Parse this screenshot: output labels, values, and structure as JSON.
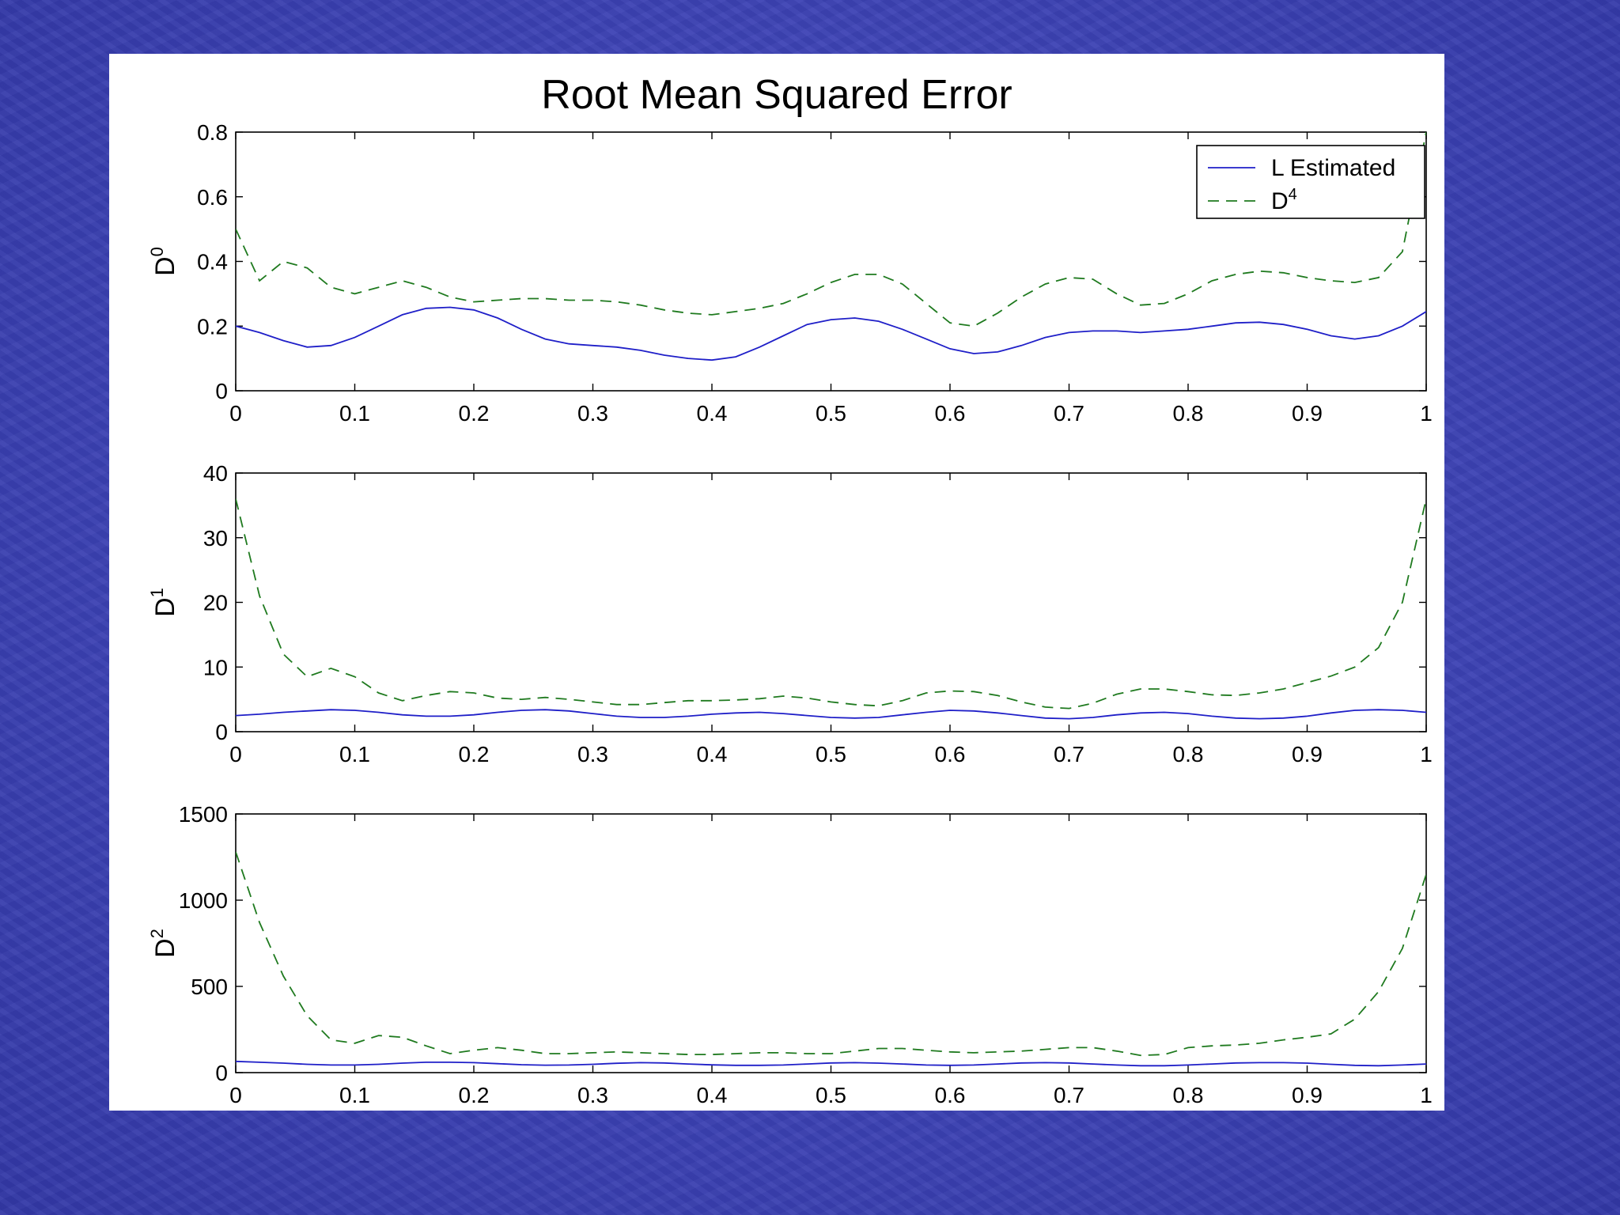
{
  "colors": {
    "background": "#3f45b8",
    "panel": "#ffffff",
    "l_estimated": "#1f1fc8",
    "d4": "#1f7a1f"
  },
  "chart_data": {
    "title": "Root Mean Squared Error",
    "legend": {
      "placement": "top-right",
      "entries": [
        {
          "label": "L Estimated",
          "style": "solid"
        },
        {
          "label": "D",
          "sup": "4",
          "style": "dashed"
        }
      ]
    },
    "subplots": [
      {
        "type": "line",
        "ylabel": "D",
        "ylabel_sup": "0",
        "xlim": [
          0,
          1
        ],
        "ylim": [
          0,
          0.8
        ],
        "xticks": [
          "0",
          "0.1",
          "0.2",
          "0.3",
          "0.4",
          "0.5",
          "0.6",
          "0.7",
          "0.8",
          "0.9",
          "1"
        ],
        "yticks": [
          "0",
          "0.2",
          "0.4",
          "0.6",
          "0.8"
        ],
        "ytick_values": [
          0,
          0.2,
          0.4,
          0.6,
          0.8
        ],
        "series": [
          {
            "name": "L Estimated",
            "style": "solid",
            "x": [
              0,
              0.02,
              0.04,
              0.06,
              0.08,
              0.1,
              0.12,
              0.14,
              0.16,
              0.18,
              0.2,
              0.22,
              0.24,
              0.26,
              0.28,
              0.3,
              0.32,
              0.34,
              0.36,
              0.38,
              0.4,
              0.42,
              0.44,
              0.46,
              0.48,
              0.5,
              0.52,
              0.54,
              0.56,
              0.58,
              0.6,
              0.62,
              0.64,
              0.66,
              0.68,
              0.7,
              0.72,
              0.74,
              0.76,
              0.78,
              0.8,
              0.82,
              0.84,
              0.86,
              0.88,
              0.9,
              0.92,
              0.94,
              0.96,
              0.98,
              1
            ],
            "y": [
              0.2,
              0.18,
              0.155,
              0.135,
              0.14,
              0.165,
              0.2,
              0.235,
              0.255,
              0.258,
              0.25,
              0.225,
              0.19,
              0.16,
              0.145,
              0.14,
              0.135,
              0.125,
              0.11,
              0.1,
              0.095,
              0.105,
              0.135,
              0.17,
              0.205,
              0.22,
              0.225,
              0.215,
              0.19,
              0.16,
              0.13,
              0.115,
              0.12,
              0.14,
              0.165,
              0.18,
              0.185,
              0.185,
              0.18,
              0.185,
              0.19,
              0.2,
              0.21,
              0.212,
              0.205,
              0.19,
              0.17,
              0.16,
              0.17,
              0.2,
              0.245
            ]
          },
          {
            "name": "D4",
            "style": "dashed",
            "x": [
              0,
              0.02,
              0.04,
              0.06,
              0.08,
              0.1,
              0.12,
              0.14,
              0.16,
              0.18,
              0.2,
              0.22,
              0.24,
              0.26,
              0.28,
              0.3,
              0.32,
              0.34,
              0.36,
              0.38,
              0.4,
              0.42,
              0.44,
              0.46,
              0.48,
              0.5,
              0.52,
              0.54,
              0.56,
              0.58,
              0.6,
              0.62,
              0.64,
              0.66,
              0.68,
              0.7,
              0.72,
              0.74,
              0.76,
              0.78,
              0.8,
              0.82,
              0.84,
              0.86,
              0.88,
              0.9,
              0.92,
              0.94,
              0.96,
              0.98,
              1
            ],
            "y": [
              0.5,
              0.34,
              0.4,
              0.38,
              0.32,
              0.3,
              0.32,
              0.34,
              0.32,
              0.29,
              0.275,
              0.28,
              0.285,
              0.285,
              0.28,
              0.28,
              0.275,
              0.265,
              0.25,
              0.24,
              0.235,
              0.245,
              0.255,
              0.27,
              0.3,
              0.335,
              0.36,
              0.36,
              0.33,
              0.27,
              0.21,
              0.2,
              0.24,
              0.29,
              0.33,
              0.35,
              0.345,
              0.3,
              0.265,
              0.27,
              0.3,
              0.34,
              0.36,
              0.37,
              0.365,
              0.35,
              0.34,
              0.335,
              0.35,
              0.43,
              0.8
            ]
          }
        ]
      },
      {
        "type": "line",
        "ylabel": "D",
        "ylabel_sup": "1",
        "xlim": [
          0,
          1
        ],
        "ylim": [
          0,
          40
        ],
        "xticks": [
          "0",
          "0.1",
          "0.2",
          "0.3",
          "0.4",
          "0.5",
          "0.6",
          "0.7",
          "0.8",
          "0.9",
          "1"
        ],
        "yticks": [
          "0",
          "10",
          "20",
          "30",
          "40"
        ],
        "ytick_values": [
          0,
          10,
          20,
          30,
          40
        ],
        "series": [
          {
            "name": "L Estimated",
            "style": "solid",
            "x": [
              0,
              0.02,
              0.04,
              0.06,
              0.08,
              0.1,
              0.12,
              0.14,
              0.16,
              0.18,
              0.2,
              0.22,
              0.24,
              0.26,
              0.28,
              0.3,
              0.32,
              0.34,
              0.36,
              0.38,
              0.4,
              0.42,
              0.44,
              0.46,
              0.48,
              0.5,
              0.52,
              0.54,
              0.56,
              0.58,
              0.6,
              0.62,
              0.64,
              0.66,
              0.68,
              0.7,
              0.72,
              0.74,
              0.76,
              0.78,
              0.8,
              0.82,
              0.84,
              0.86,
              0.88,
              0.9,
              0.92,
              0.94,
              0.96,
              0.98,
              1
            ],
            "y": [
              2.5,
              2.7,
              3.0,
              3.2,
              3.4,
              3.3,
              3.0,
              2.6,
              2.4,
              2.4,
              2.6,
              3.0,
              3.3,
              3.4,
              3.2,
              2.8,
              2.4,
              2.2,
              2.2,
              2.4,
              2.7,
              2.9,
              3.0,
              2.8,
              2.5,
              2.2,
              2.1,
              2.2,
              2.6,
              3.0,
              3.3,
              3.2,
              2.9,
              2.5,
              2.1,
              2.0,
              2.2,
              2.6,
              2.9,
              3.0,
              2.8,
              2.4,
              2.1,
              2.0,
              2.1,
              2.4,
              2.9,
              3.3,
              3.4,
              3.3,
              3.0
            ]
          },
          {
            "name": "D4",
            "style": "dashed",
            "x": [
              0,
              0.02,
              0.04,
              0.06,
              0.08,
              0.1,
              0.12,
              0.14,
              0.16,
              0.18,
              0.2,
              0.22,
              0.24,
              0.26,
              0.28,
              0.3,
              0.32,
              0.34,
              0.36,
              0.38,
              0.4,
              0.42,
              0.44,
              0.46,
              0.48,
              0.5,
              0.52,
              0.54,
              0.56,
              0.58,
              0.6,
              0.62,
              0.64,
              0.66,
              0.68,
              0.7,
              0.72,
              0.74,
              0.76,
              0.78,
              0.8,
              0.82,
              0.84,
              0.86,
              0.88,
              0.9,
              0.92,
              0.94,
              0.96,
              0.98,
              1
            ],
            "y": [
              36,
              21,
              12,
              8.5,
              9.8,
              8.5,
              6.0,
              4.8,
              5.6,
              6.2,
              6.0,
              5.2,
              5.0,
              5.3,
              5.0,
              4.6,
              4.2,
              4.2,
              4.5,
              4.8,
              4.8,
              4.9,
              5.1,
              5.5,
              5.2,
              4.6,
              4.2,
              4.0,
              4.8,
              6.0,
              6.3,
              6.2,
              5.6,
              4.6,
              3.8,
              3.6,
              4.4,
              5.8,
              6.6,
              6.6,
              6.2,
              5.7,
              5.6,
              6.0,
              6.6,
              7.6,
              8.6,
              10,
              13,
              20,
              36
            ]
          }
        ]
      },
      {
        "type": "line",
        "ylabel": "D",
        "ylabel_sup": "2",
        "xlim": [
          0,
          1
        ],
        "ylim": [
          0,
          1500
        ],
        "xticks": [
          "0",
          "0.1",
          "0.2",
          "0.3",
          "0.4",
          "0.5",
          "0.6",
          "0.7",
          "0.8",
          "0.9",
          "1"
        ],
        "yticks": [
          "0",
          "500",
          "1000",
          "1500"
        ],
        "ytick_values": [
          0,
          500,
          1000,
          1500
        ],
        "series": [
          {
            "name": "L Estimated",
            "style": "solid",
            "x": [
              0,
              0.02,
              0.04,
              0.06,
              0.08,
              0.1,
              0.12,
              0.14,
              0.16,
              0.18,
              0.2,
              0.22,
              0.24,
              0.26,
              0.28,
              0.3,
              0.32,
              0.34,
              0.36,
              0.38,
              0.4,
              0.42,
              0.44,
              0.46,
              0.48,
              0.5,
              0.52,
              0.54,
              0.56,
              0.58,
              0.6,
              0.62,
              0.64,
              0.66,
              0.68,
              0.7,
              0.72,
              0.74,
              0.76,
              0.78,
              0.8,
              0.82,
              0.84,
              0.86,
              0.88,
              0.9,
              0.92,
              0.94,
              0.96,
              0.98,
              1
            ],
            "y": [
              65,
              60,
              55,
              48,
              44,
              44,
              48,
              55,
              60,
              60,
              58,
              52,
              46,
              43,
              44,
              48,
              54,
              58,
              56,
              50,
              45,
              42,
              42,
              44,
              50,
              56,
              58,
              55,
              50,
              44,
              42,
              44,
              50,
              56,
              58,
              56,
              50,
              44,
              40,
              40,
              44,
              50,
              56,
              58,
              58,
              55,
              48,
              42,
              40,
              44,
              50
            ]
          },
          {
            "name": "D4",
            "style": "dashed",
            "x": [
              0,
              0.02,
              0.04,
              0.06,
              0.08,
              0.1,
              0.12,
              0.14,
              0.16,
              0.18,
              0.2,
              0.22,
              0.24,
              0.26,
              0.28,
              0.3,
              0.32,
              0.34,
              0.36,
              0.38,
              0.4,
              0.42,
              0.44,
              0.46,
              0.48,
              0.5,
              0.52,
              0.54,
              0.56,
              0.58,
              0.6,
              0.62,
              0.64,
              0.66,
              0.68,
              0.7,
              0.72,
              0.74,
              0.76,
              0.78,
              0.8,
              0.82,
              0.84,
              0.86,
              0.88,
              0.9,
              0.92,
              0.94,
              0.96,
              0.98,
              1
            ],
            "y": [
              1280,
              870,
              560,
              330,
              190,
              170,
              215,
              205,
              155,
              110,
              130,
              145,
              130,
              110,
              110,
              115,
              120,
              115,
              110,
              105,
              105,
              110,
              115,
              115,
              110,
              110,
              125,
              140,
              140,
              130,
              120,
              115,
              120,
              125,
              135,
              145,
              145,
              125,
              100,
              105,
              145,
              155,
              160,
              170,
              190,
              205,
              225,
              310,
              470,
              720,
              1150
            ]
          }
        ]
      }
    ]
  }
}
